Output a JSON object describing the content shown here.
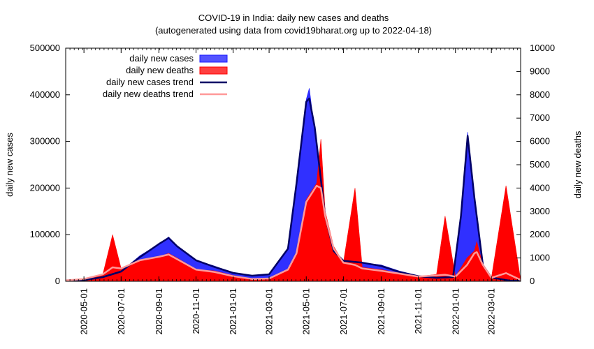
{
  "chart_data": {
    "type": "area",
    "title": "COVID-19 in India: daily new cases and deaths",
    "subtitle": "(autogenerated using data from covid19bharat.org up to 2022-04-18)",
    "ylabel_left": "daily new cases",
    "ylabel_right": "daily new deaths",
    "ylim_left": [
      0,
      500000
    ],
    "ylim_right": [
      0,
      10000
    ],
    "xlim": [
      "2020-04-01",
      "2022-04-18"
    ],
    "yticks_left": [
      "0",
      "100000",
      "200000",
      "300000",
      "400000",
      "500000"
    ],
    "yticks_right": [
      "0",
      "1000",
      "2000",
      "3000",
      "4000",
      "5000",
      "6000",
      "7000",
      "8000",
      "9000",
      "10000"
    ],
    "xticks": [
      "2020-05-01",
      "2020-07-01",
      "2020-09-01",
      "2020-11-01",
      "2021-01-01",
      "2021-03-01",
      "2021-05-01",
      "2021-07-01",
      "2021-09-01",
      "2021-11-01",
      "2022-01-01",
      "2022-03-01"
    ],
    "legend_position": "top-left",
    "series": [
      {
        "name": "daily new cases",
        "kind": "bars",
        "axis": "left",
        "color": "#1a1aff",
        "x": [
          "2020-04-01",
          "2020-05-01",
          "2020-06-01",
          "2020-07-01",
          "2020-08-01",
          "2020-09-01",
          "2020-09-17",
          "2020-10-01",
          "2020-11-01",
          "2020-12-01",
          "2021-01-01",
          "2021-02-01",
          "2021-03-01",
          "2021-04-01",
          "2021-04-15",
          "2021-05-01",
          "2021-05-06",
          "2021-05-15",
          "2021-06-01",
          "2021-06-15",
          "2021-07-01",
          "2021-08-01",
          "2021-09-01",
          "2021-10-01",
          "2021-11-01",
          "2021-12-01",
          "2021-12-28",
          "2022-01-10",
          "2022-01-21",
          "2022-02-01",
          "2022-02-15",
          "2022-03-01",
          "2022-04-01",
          "2022-04-18"
        ],
        "values": [
          2000,
          2500,
          9000,
          21000,
          55000,
          80000,
          95000,
          75000,
          45000,
          33000,
          18000,
          12000,
          16000,
          72000,
          200000,
          390000,
          414000,
          320000,
          130000,
          60000,
          45000,
          40000,
          35000,
          22000,
          12000,
          8000,
          9000,
          150000,
          320000,
          170000,
          30000,
          8000,
          1500,
          2000
        ]
      },
      {
        "name": "daily new deaths",
        "kind": "bars",
        "axis": "right",
        "color": "#ff0000",
        "x": [
          "2020-04-01",
          "2020-05-01",
          "2020-06-01",
          "2020-06-17",
          "2020-07-01",
          "2020-08-01",
          "2020-09-01",
          "2020-09-17",
          "2020-10-01",
          "2020-11-01",
          "2020-12-01",
          "2021-01-01",
          "2021-02-01",
          "2021-03-01",
          "2021-04-01",
          "2021-04-15",
          "2021-05-01",
          "2021-05-18",
          "2021-05-25",
          "2021-06-01",
          "2021-06-15",
          "2021-07-01",
          "2021-07-20",
          "2021-08-01",
          "2021-09-01",
          "2021-10-01",
          "2021-11-01",
          "2021-12-01",
          "2021-12-15",
          "2022-01-01",
          "2022-01-20",
          "2022-02-01",
          "2022-02-05",
          "2022-02-15",
          "2022-03-01",
          "2022-03-25",
          "2022-04-18"
        ],
        "values": [
          40,
          100,
          300,
          2000,
          550,
          900,
          1050,
          1200,
          1000,
          500,
          450,
          250,
          100,
          120,
          500,
          1200,
          3500,
          4200,
          6100,
          3000,
          1500,
          800,
          4000,
          600,
          500,
          350,
          200,
          300,
          2800,
          200,
          1000,
          1300,
          1700,
          700,
          150,
          4100,
          60
        ]
      },
      {
        "name": "daily new cases trend",
        "kind": "line",
        "axis": "left",
        "color": "#000066",
        "x": [
          "2020-04-01",
          "2020-05-01",
          "2020-06-01",
          "2020-07-01",
          "2020-08-01",
          "2020-09-01",
          "2020-09-17",
          "2020-10-01",
          "2020-11-01",
          "2020-12-01",
          "2021-01-01",
          "2021-02-01",
          "2021-03-01",
          "2021-04-01",
          "2021-04-15",
          "2021-05-01",
          "2021-05-06",
          "2021-05-15",
          "2021-06-01",
          "2021-06-15",
          "2021-07-01",
          "2021-08-01",
          "2021-09-01",
          "2021-10-01",
          "2021-11-01",
          "2021-12-01",
          "2021-12-28",
          "2022-01-10",
          "2022-01-21",
          "2022-02-01",
          "2022-02-15",
          "2022-03-01",
          "2022-04-01",
          "2022-04-18"
        ],
        "values": [
          2000,
          2500,
          9000,
          21000,
          52000,
          80000,
          93000,
          75000,
          45000,
          31000,
          18000,
          12000,
          15000,
          70000,
          210000,
          385000,
          392000,
          330000,
          140000,
          65000,
          44000,
          40000,
          33000,
          20000,
          11000,
          7500,
          9000,
          140000,
          312000,
          180000,
          35000,
          8000,
          1200,
          1500
        ]
      },
      {
        "name": "daily new deaths trend",
        "kind": "line",
        "axis": "right",
        "color": "#ff9999",
        "x": [
          "2020-04-01",
          "2020-05-01",
          "2020-06-01",
          "2020-06-17",
          "2020-07-01",
          "2020-08-01",
          "2020-09-01",
          "2020-09-17",
          "2020-10-01",
          "2020-11-01",
          "2020-12-01",
          "2021-01-01",
          "2021-02-01",
          "2021-03-01",
          "2021-04-01",
          "2021-04-15",
          "2021-05-01",
          "2021-05-18",
          "2021-05-25",
          "2021-06-01",
          "2021-06-15",
          "2021-07-01",
          "2021-07-20",
          "2021-08-01",
          "2021-09-01",
          "2021-10-01",
          "2021-11-01",
          "2021-12-01",
          "2021-12-15",
          "2022-01-01",
          "2022-01-20",
          "2022-02-01",
          "2022-02-05",
          "2022-02-15",
          "2022-03-01",
          "2022-03-25",
          "2022-04-18"
        ],
        "values": [
          40,
          100,
          300,
          600,
          550,
          900,
          1050,
          1150,
          950,
          500,
          400,
          220,
          100,
          120,
          500,
          1200,
          3400,
          4100,
          4000,
          2800,
          1400,
          800,
          700,
          550,
          450,
          330,
          200,
          250,
          280,
          200,
          700,
          1200,
          1250,
          700,
          150,
          350,
          60
        ]
      }
    ]
  }
}
